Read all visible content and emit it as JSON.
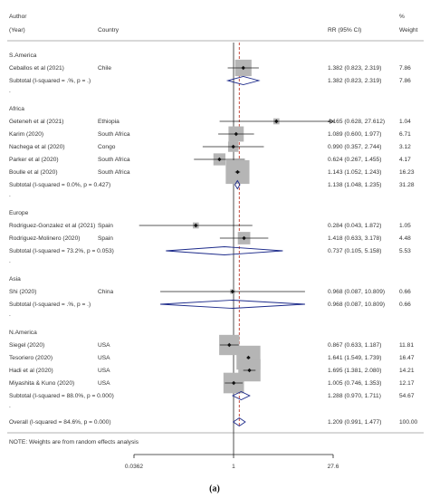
{
  "chart_data": {
    "type": "forest",
    "header": {
      "author": "Author",
      "year": "(Year)",
      "country": "Country",
      "estimate": "RR (95% CI)",
      "percent": "%",
      "weight": "Weight"
    },
    "groups": [
      {
        "name": "S.America",
        "studies": [
          {
            "study": "Ceballos et al (2021)",
            "country": "Chile",
            "rr": 1.382,
            "lower": 0.823,
            "upper": 2.319,
            "ci_label": "1.382 (0.823, 2.319)",
            "weight": 7.86
          }
        ],
        "subtotal": {
          "label": "Subtotal  (I-squared = .%, p = .)",
          "rr": 1.382,
          "lower": 0.823,
          "upper": 2.319,
          "ci_label": "1.382 (0.823, 2.319)",
          "weight": 7.86
        },
        "separator": "."
      },
      {
        "name": "Africa",
        "studies": [
          {
            "study": "Geteneh et al (2021)",
            "country": "Ethiopia",
            "rr": 4.165,
            "lower": 0.628,
            "upper": 27.612,
            "ci_label": "4.165 (0.628, 27.612)",
            "weight": 1.04
          },
          {
            "study": "Karim (2020)",
            "country": "South Africa",
            "rr": 1.089,
            "lower": 0.6,
            "upper": 1.977,
            "ci_label": "1.089 (0.600, 1.977)",
            "weight": 6.71
          },
          {
            "study": "Nachega et al (2020)",
            "country": "Congo",
            "rr": 0.99,
            "lower": 0.357,
            "upper": 2.744,
            "ci_label": "0.990 (0.357, 2.744)",
            "weight": 3.12
          },
          {
            "study": "Parker et al  (2020)",
            "country": "South Africa",
            "rr": 0.624,
            "lower": 0.267,
            "upper": 1.455,
            "ci_label": "0.624 (0.267, 1.455)",
            "weight": 4.17
          },
          {
            "study": "Boulle et al (2020)",
            "country": "South Africa",
            "rr": 1.143,
            "lower": 1.052,
            "upper": 1.243,
            "ci_label": "1.143 (1.052, 1.243)",
            "weight": 16.23
          }
        ],
        "subtotal": {
          "label": "Subtotal  (I-squared = 0.0%, p = 0.427)",
          "rr": 1.138,
          "lower": 1.048,
          "upper": 1.235,
          "ci_label": "1.138 (1.048, 1.235)",
          "weight": 31.28
        },
        "separator": "."
      },
      {
        "name": "Europe",
        "studies": [
          {
            "study": "Rodriguez-Gonzalez et al (2021)",
            "country": "Spain",
            "rr": 0.284,
            "lower": 0.043,
            "upper": 1.872,
            "ci_label": "0.284 (0.043, 1.872)",
            "weight": 1.05
          },
          {
            "study": "Rodriguez-Molinero (2020)",
            "country": "Spain",
            "rr": 1.418,
            "lower": 0.633,
            "upper": 3.178,
            "ci_label": "1.418 (0.633, 3.178)",
            "weight": 4.48
          }
        ],
        "subtotal": {
          "label": "Subtotal  (I-squared = 73.2%, p = 0.053)",
          "rr": 0.737,
          "lower": 0.105,
          "upper": 5.158,
          "ci_label": "0.737 (0.105, 5.158)",
          "weight": 5.53
        },
        "separator": "."
      },
      {
        "name": "Asia",
        "studies": [
          {
            "study": "Shi (2020)",
            "country": "China",
            "rr": 0.968,
            "lower": 0.087,
            "upper": 10.809,
            "ci_label": "0.968 (0.087, 10.809)",
            "weight": 0.66
          }
        ],
        "subtotal": {
          "label": "Subtotal  (I-squared = .%, p = .)",
          "rr": 0.968,
          "lower": 0.087,
          "upper": 10.809,
          "ci_label": "0.968 (0.087, 10.809)",
          "weight": 0.66
        },
        "separator": "."
      },
      {
        "name": "N.America",
        "studies": [
          {
            "study": "Siegel (2020)",
            "country": "USA",
            "rr": 0.867,
            "lower": 0.633,
            "upper": 1.187,
            "ci_label": "0.867 (0.633, 1.187)",
            "weight": 11.81
          },
          {
            "study": "Tesoriero (2020)",
            "country": "USA",
            "rr": 1.641,
            "lower": 1.549,
            "upper": 1.739,
            "ci_label": "1.641 (1.549, 1.739)",
            "weight": 16.47
          },
          {
            "study": "Hadi  et al (2020)",
            "country": "USA",
            "rr": 1.695,
            "lower": 1.381,
            "upper": 2.08,
            "ci_label": "1.695 (1.381, 2.080)",
            "weight": 14.21
          },
          {
            "study": "Miyashita & Kuno (2020)",
            "country": "USA",
            "rr": 1.005,
            "lower": 0.746,
            "upper": 1.353,
            "ci_label": "1.005 (0.746, 1.353)",
            "weight": 12.17
          }
        ],
        "subtotal": {
          "label": "Subtotal  (I-squared = 88.0%, p = 0.000)",
          "rr": 1.288,
          "lower": 0.97,
          "upper": 1.711,
          "ci_label": "1.288 (0.970, 1.711)",
          "weight": 54.67
        },
        "separator": "."
      }
    ],
    "overall": {
      "label": "Overall  (I-squared = 84.6%, p = 0.000)",
      "rr": 1.209,
      "lower": 0.991,
      "upper": 1.477,
      "ci_label": "1.209 (0.991, 1.477)",
      "weight": 100,
      "weight_label": "100.00"
    },
    "note": "NOTE: Weights are from random effects analysis",
    "xlim": [
      0.0362,
      27.6
    ],
    "xticks": [
      0.0362,
      1,
      27.6
    ],
    "log_scale": true,
    "reference": 1,
    "box_color": "#b5b5b5",
    "diamond_color": "#1c2a8a",
    "overall_line_color": "#c0392b",
    "caption": "(a)"
  }
}
